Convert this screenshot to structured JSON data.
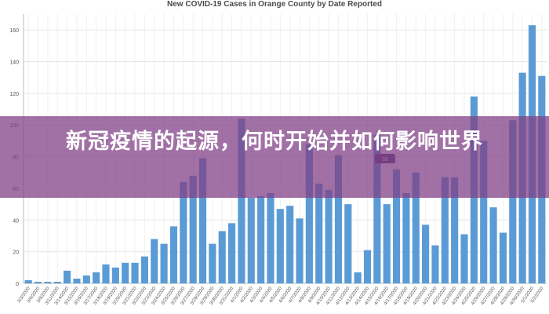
{
  "banner": {
    "headline": "新冠疫情的起源，何时开始并如何影响世界"
  },
  "chart_data": {
    "type": "bar",
    "title": "New COVID-19 Cases in Orange County by Date Reported",
    "xlabel": "",
    "ylabel": "",
    "ylim": [
      0,
      170
    ],
    "yticks": [
      0,
      20,
      40,
      60,
      80,
      100,
      120,
      140,
      160
    ],
    "grid": true,
    "bar_color": "#5b9bd5",
    "categories": [
      "3/3/2020",
      "3/6/2020",
      "3/9/2020",
      "3/11/2020",
      "3/14/2020",
      "3/15/2020",
      "3/16/2020",
      "3/17/2020",
      "3/18/2020",
      "3/19/2020",
      "3/20/2020",
      "3/21/2020",
      "3/22/2020",
      "3/23/2020",
      "3/24/2020",
      "3/25/2020",
      "3/26/2020",
      "3/27/2020",
      "3/28/2020",
      "3/29/2020",
      "3/30/2020",
      "3/31/2020",
      "4/1/2020",
      "4/2/2020",
      "4/3/2020",
      "4/4/2020",
      "4/5/2020",
      "4/6/2020",
      "4/7/2020",
      "4/8/2020",
      "4/9/2020",
      "4/10/2020",
      "4/11/2020",
      "4/12/2020",
      "4/13/2020",
      "4/14/2020",
      "4/15/2020",
      "4/16/2020",
      "4/17/2020",
      "4/18/2020",
      "4/19/2020",
      "4/20/2020",
      "4/21/2020",
      "4/22/2020",
      "4/23/2020",
      "4/24/2020",
      "4/25/2020",
      "4/26/2020",
      "4/27/2020",
      "4/28/2020",
      "4/29/2020",
      "4/30/2020",
      "5/1/2020",
      "5/2/2020"
    ],
    "values": [
      2,
      1,
      1,
      1,
      8,
      3,
      5,
      7,
      12,
      10,
      13,
      13,
      17,
      28,
      25,
      36,
      64,
      68,
      79,
      25,
      33,
      38,
      104,
      54,
      55,
      57,
      47,
      49,
      41,
      88,
      63,
      59,
      81,
      50,
      7,
      21,
      94,
      50,
      72,
      57,
      70,
      37,
      24,
      67,
      67,
      31,
      118,
      90,
      48,
      32,
      103,
      133,
      163,
      131
    ],
    "tooltip_label": "33"
  }
}
